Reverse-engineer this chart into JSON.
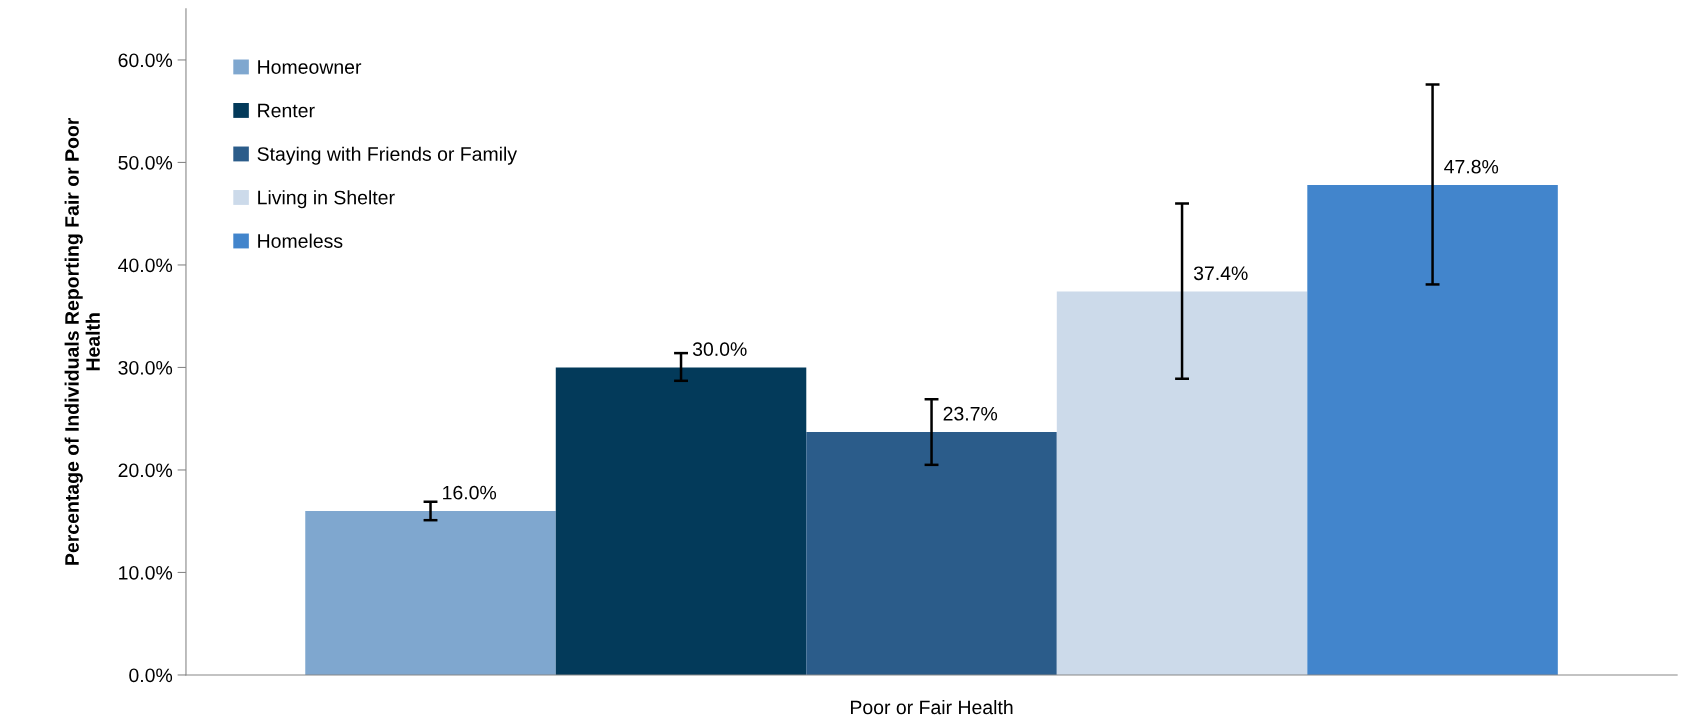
{
  "chart_data": {
    "type": "bar",
    "ylabel": "Percentage of Individuals Reporting Fair or Poor\nHealth",
    "categories": [
      "Poor or Fair Health"
    ],
    "series": [
      {
        "name": "Homeowner",
        "color": "#7fa7cf",
        "values": [
          16.0
        ],
        "errors": [
          [
            15.1,
            16.9
          ]
        ],
        "value_labels": [
          "16.0%"
        ]
      },
      {
        "name": "Renter",
        "color": "#033a5a",
        "values": [
          30.0
        ],
        "errors": [
          [
            28.7,
            31.4
          ]
        ],
        "value_labels": [
          "30.0%"
        ]
      },
      {
        "name": "Staying with Friends or Family",
        "color": "#2b5c8a",
        "values": [
          23.7
        ],
        "errors": [
          [
            20.5,
            26.9
          ]
        ],
        "value_labels": [
          "23.7%"
        ]
      },
      {
        "name": "Living in Shelter",
        "color": "#ccdaea",
        "values": [
          37.4
        ],
        "errors": [
          [
            28.9,
            46.0
          ]
        ],
        "value_labels": [
          "37.4%"
        ]
      },
      {
        "name": "Homeless",
        "color": "#4285cc",
        "values": [
          47.8
        ],
        "errors": [
          [
            38.1,
            57.6
          ]
        ],
        "value_labels": [
          "47.8%"
        ]
      }
    ],
    "ylim": [
      0,
      65
    ],
    "yticks": [
      {
        "value": 0,
        "label": "0.0%"
      },
      {
        "value": 10,
        "label": "10.0%"
      },
      {
        "value": 20,
        "label": "20.0%"
      },
      {
        "value": 30,
        "label": "30.0%"
      },
      {
        "value": 40,
        "label": "40.0%"
      },
      {
        "value": 50,
        "label": "50.0%"
      },
      {
        "value": 60,
        "label": "60.0%"
      }
    ],
    "legend": "top left",
    "grid": false
  }
}
